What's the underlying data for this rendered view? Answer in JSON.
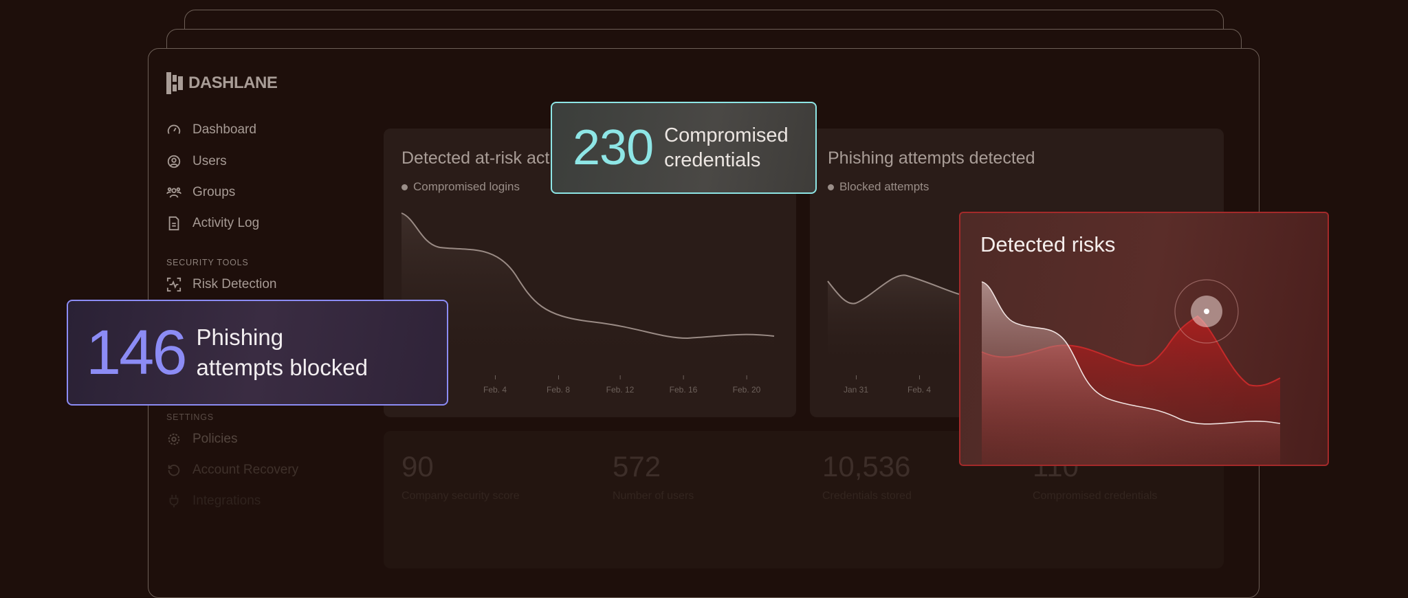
{
  "brand": {
    "name": "DASHLANE"
  },
  "sidebar": {
    "items": [
      {
        "label": "Dashboard",
        "icon": "gauge-icon"
      },
      {
        "label": "Users",
        "icon": "user-circle-icon"
      },
      {
        "label": "Groups",
        "icon": "group-icon"
      },
      {
        "label": "Activity Log",
        "icon": "document-icon"
      }
    ],
    "security_heading": "SECURITY TOOLS",
    "security_items": [
      {
        "label": "Risk Detection",
        "icon": "scan-pulse-icon"
      }
    ],
    "settings_heading": "SETTINGS",
    "settings_items": [
      {
        "label": "Policies",
        "icon": "gear-icon"
      },
      {
        "label": "Account Recovery",
        "icon": "recovery-icon"
      },
      {
        "label": "Integrations",
        "icon": "plug-icon"
      }
    ]
  },
  "charts": {
    "risk": {
      "title": "Detected at-risk activity",
      "legend": "Compromised logins",
      "ticks": [
        "Feb. 4",
        "Feb. 8",
        "Feb. 12",
        "Feb. 16",
        "Feb. 20"
      ]
    },
    "phishing": {
      "title": "Phishing attempts detected",
      "legend": "Blocked attempts",
      "ticks": [
        "Jan 31",
        "Feb. 4"
      ]
    }
  },
  "stats": [
    {
      "value": "90",
      "label": "Company security score"
    },
    {
      "value": "572",
      "label": "Number of users"
    },
    {
      "value": "10,536",
      "label": "Credentials stored"
    },
    {
      "value": "110",
      "label": "Compromised credentials"
    }
  ],
  "callouts": {
    "compromised": {
      "value": "230",
      "line1": "Compromised",
      "line2": "credentials",
      "color": "#8ee6e6"
    },
    "phishing": {
      "value": "146",
      "line1": "Phishing",
      "line2": "attempts blocked",
      "color": "#8c8cf5"
    },
    "risks": {
      "title": "Detected risks",
      "color": "#a42a2a"
    }
  }
}
